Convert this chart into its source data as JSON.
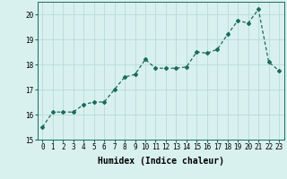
{
  "x": [
    0,
    1,
    2,
    3,
    4,
    5,
    6,
    7,
    8,
    9,
    10,
    11,
    12,
    13,
    14,
    15,
    16,
    17,
    18,
    19,
    20,
    21,
    22,
    23
  ],
  "y": [
    15.5,
    16.1,
    16.1,
    16.1,
    16.4,
    16.5,
    16.5,
    17.0,
    17.5,
    17.6,
    18.2,
    17.85,
    17.85,
    17.85,
    17.9,
    18.5,
    18.45,
    18.6,
    19.2,
    19.75,
    19.65,
    20.2,
    18.1,
    17.75
  ],
  "line_color": "#1a6b5c",
  "marker": "D",
  "marker_size": 2.0,
  "bg_color": "#d8f0ee",
  "grid_color": "#b8dbd8",
  "xlabel": "Humidex (Indice chaleur)",
  "xlim": [
    -0.5,
    23.5
  ],
  "ylim": [
    15.0,
    20.5
  ],
  "yticks": [
    15,
    16,
    17,
    18,
    19,
    20
  ],
  "xticks": [
    0,
    1,
    2,
    3,
    4,
    5,
    6,
    7,
    8,
    9,
    10,
    11,
    12,
    13,
    14,
    15,
    16,
    17,
    18,
    19,
    20,
    21,
    22,
    23
  ],
  "tick_fontsize": 5.5,
  "xlabel_fontsize": 7.0,
  "linewidth": 0.9
}
